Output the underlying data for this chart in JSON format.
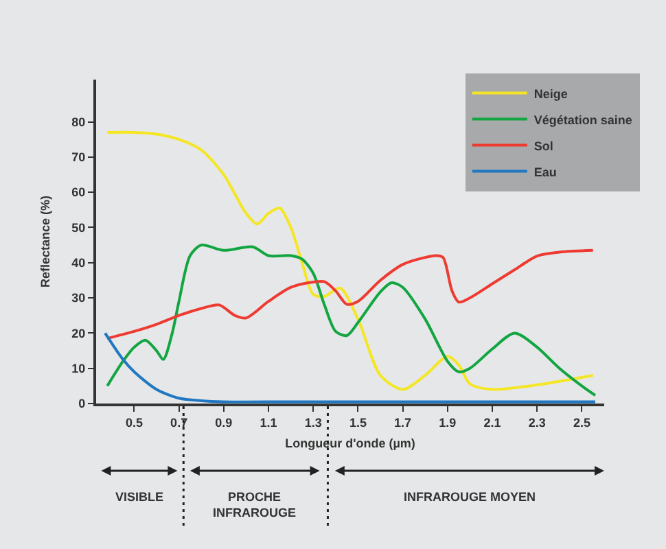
{
  "chart_data": {
    "type": "line",
    "xlabel": "Longueur d'onde (µm)",
    "ylabel": "Reflectance (%)",
    "xlim": [
      0.33,
      2.6
    ],
    "ylim": [
      0,
      92
    ],
    "xticks": [
      0.5,
      0.7,
      0.9,
      1.1,
      1.3,
      1.5,
      1.7,
      1.9,
      2.1,
      2.3,
      2.5
    ],
    "yticks": [
      0,
      10,
      20,
      30,
      40,
      50,
      60,
      70,
      80
    ],
    "grid": false,
    "legend": "top right",
    "marker": "none",
    "line_style": "solid",
    "series": [
      {
        "name": "Neige",
        "color": "#f5e625",
        "x": [
          0.38,
          0.5,
          0.6,
          0.7,
          0.8,
          0.9,
          1.0,
          1.05,
          1.1,
          1.15,
          1.2,
          1.25,
          1.3,
          1.35,
          1.42,
          1.5,
          1.6,
          1.7,
          1.8,
          1.9,
          1.95,
          2.0,
          2.1,
          2.3,
          2.55
        ],
        "values": [
          77,
          77,
          76.5,
          75,
          72,
          65,
          54,
          51,
          54,
          55.5,
          50,
          40,
          31,
          30.4,
          32.8,
          24,
          8,
          4,
          8,
          13.4,
          11,
          5.6,
          4,
          5.3,
          8
        ]
      },
      {
        "name": "Végétation saine",
        "color": "#12a542",
        "x": [
          0.38,
          0.45,
          0.5,
          0.55,
          0.6,
          0.63,
          0.67,
          0.7,
          0.75,
          0.8,
          0.9,
          1.03,
          1.1,
          1.2,
          1.25,
          1.3,
          1.35,
          1.4,
          1.45,
          1.5,
          1.6,
          1.65,
          1.7,
          1.8,
          1.9,
          1.95,
          2.0,
          2.1,
          2.2,
          2.3,
          2.4,
          2.5,
          2.56
        ],
        "values": [
          5,
          12,
          16,
          18,
          15,
          12.5,
          20,
          29,
          42,
          45,
          43.5,
          44.5,
          42,
          42,
          41,
          37,
          28,
          20.5,
          19.3,
          23,
          31.7,
          34.3,
          33,
          24,
          12,
          9,
          10,
          15.5,
          20,
          16,
          10,
          5,
          2.3
        ]
      },
      {
        "name": "Sol",
        "color": "#ee3b32",
        "x": [
          0.38,
          0.5,
          0.6,
          0.7,
          0.8,
          0.88,
          0.95,
          1.0,
          1.1,
          1.2,
          1.3,
          1.35,
          1.4,
          1.45,
          1.5,
          1.6,
          1.7,
          1.8,
          1.85,
          1.88,
          1.92,
          1.95,
          2.0,
          2.1,
          2.2,
          2.3,
          2.4,
          2.55
        ],
        "values": [
          18.5,
          20.5,
          22.5,
          25,
          27,
          28,
          25,
          24.3,
          29,
          33,
          34.5,
          34.6,
          32,
          28.2,
          29,
          35,
          39.5,
          41.5,
          42,
          41.5,
          32,
          28.8,
          30,
          34,
          38,
          41.9,
          43,
          43.5
        ]
      },
      {
        "name": "Eau",
        "color": "#1f78c1",
        "x": [
          0.37,
          0.45,
          0.5,
          0.6,
          0.7,
          0.8,
          0.9,
          1.2,
          1.6,
          2.0,
          2.56
        ],
        "values": [
          20,
          12.5,
          9,
          4,
          1.5,
          0.8,
          0.5,
          0.5,
          0.5,
          0.5,
          0.5
        ]
      }
    ],
    "annotations": [
      "VISIBLE",
      "PROCHE\nINFRAROUGE",
      "INFRAROUGE MOYEN"
    ]
  }
}
